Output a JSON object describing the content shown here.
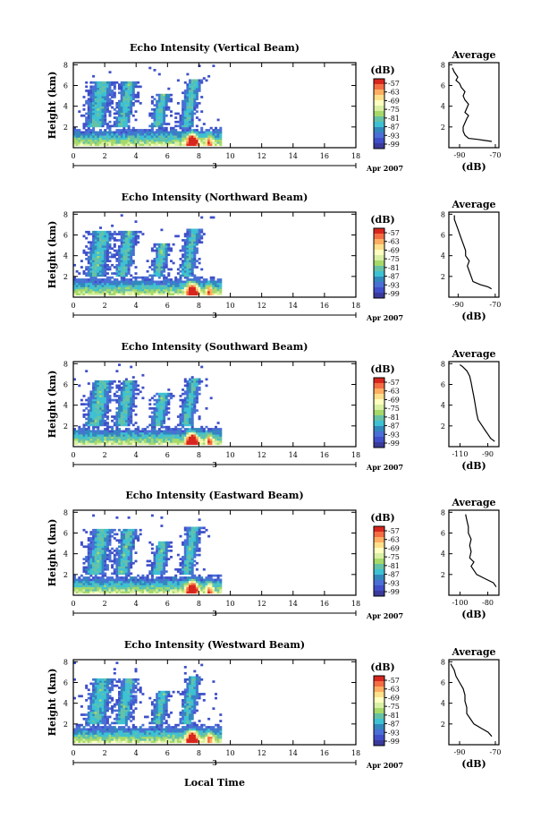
{
  "panels": [
    {
      "title": "Echo Intensity (Vertical Beam)",
      "avg_xticks": [
        "-90",
        "-70"
      ],
      "avg_xlim": [
        -96,
        -68
      ],
      "profile": [
        [
          -72,
          0.6
        ],
        [
          -76,
          0.7
        ],
        [
          -80,
          0.8
        ],
        [
          -85,
          0.9
        ],
        [
          -87,
          1.2
        ],
        [
          -88,
          1.6
        ],
        [
          -88,
          2
        ],
        [
          -87,
          2.4
        ],
        [
          -86,
          2.8
        ],
        [
          -85,
          3.1
        ],
        [
          -87,
          3.4
        ],
        [
          -86,
          3.8
        ],
        [
          -85,
          4.2
        ],
        [
          -87,
          4.6
        ],
        [
          -88,
          5
        ],
        [
          -87,
          5.4
        ],
        [
          -89,
          5.8
        ],
        [
          -90,
          6.2
        ],
        [
          -92,
          6.5
        ],
        [
          -91,
          6.8
        ],
        [
          -93,
          7.3
        ],
        [
          -94,
          7.7
        ]
      ]
    },
    {
      "title": "Echo Intensity (Northward Beam)",
      "avg_xticks": [
        "-90",
        "-70"
      ],
      "avg_xlim": [
        -95,
        -68
      ],
      "profile": [
        [
          -72,
          0.8
        ],
        [
          -74,
          1
        ],
        [
          -78,
          1.2
        ],
        [
          -82,
          1.5
        ],
        [
          -83,
          2
        ],
        [
          -84,
          2.5
        ],
        [
          -85,
          3
        ],
        [
          -84,
          3.5
        ],
        [
          -86,
          4
        ],
        [
          -86,
          4.5
        ],
        [
          -87,
          5
        ],
        [
          -88,
          5.5
        ],
        [
          -89,
          6
        ],
        [
          -90,
          6.5
        ],
        [
          -91,
          7
        ],
        [
          -92,
          7.5
        ],
        [
          -92,
          7.9
        ]
      ]
    },
    {
      "title": "Echo Intensity (Southward Beam)",
      "avg_xticks": [
        "-110",
        "-90"
      ],
      "avg_xlim": [
        -118,
        -82
      ],
      "profile": [
        [
          -85,
          0.5
        ],
        [
          -88,
          0.8
        ],
        [
          -90,
          1.2
        ],
        [
          -92,
          1.6
        ],
        [
          -94,
          2
        ],
        [
          -97,
          2.6
        ],
        [
          -98,
          3.2
        ],
        [
          -99,
          4
        ],
        [
          -100,
          4.8
        ],
        [
          -101,
          5.5
        ],
        [
          -102,
          6.2
        ],
        [
          -103,
          6.8
        ],
        [
          -105,
          7.3
        ],
        [
          -108,
          7.7
        ],
        [
          -110,
          7.9
        ]
      ]
    },
    {
      "title": "Echo Intensity (Eastward Beam)",
      "avg_xticks": [
        "-100",
        "-80"
      ],
      "avg_xlim": [
        -108,
        -72
      ],
      "profile": [
        [
          -74,
          0.8
        ],
        [
          -76,
          1.2
        ],
        [
          -82,
          1.6
        ],
        [
          -88,
          2
        ],
        [
          -90,
          2.4
        ],
        [
          -92,
          2.8
        ],
        [
          -90,
          3.2
        ],
        [
          -93,
          3.6
        ],
        [
          -92,
          4.2
        ],
        [
          -93,
          4.8
        ],
        [
          -92,
          5.4
        ],
        [
          -94,
          6
        ],
        [
          -94,
          6.6
        ],
        [
          -95,
          7.2
        ],
        [
          -96,
          7.8
        ]
      ]
    },
    {
      "title": "Echo Intensity (Westward Beam)",
      "avg_xticks": [
        "-90",
        "-70"
      ],
      "avg_xlim": [
        -96,
        -68
      ],
      "profile": [
        [
          -72,
          0.8
        ],
        [
          -74,
          1.2
        ],
        [
          -78,
          1.6
        ],
        [
          -82,
          2
        ],
        [
          -84,
          2.5
        ],
        [
          -86,
          3
        ],
        [
          -86,
          3.6
        ],
        [
          -87,
          4.2
        ],
        [
          -87,
          4.8
        ],
        [
          -88,
          5.4
        ],
        [
          -90,
          6
        ],
        [
          -92,
          6.6
        ],
        [
          -93,
          7.2
        ],
        [
          -95,
          7.8
        ]
      ]
    }
  ],
  "main_ylabel": "Height (km)",
  "main_yticks": [
    "2",
    "4",
    "6",
    "8"
  ],
  "main_xticks": [
    "0",
    "2",
    "4",
    "6",
    "8",
    "10",
    "12",
    "14",
    "16",
    "18"
  ],
  "date_day": "3",
  "date_label": "Apr 2007",
  "colorbar_unit": "(dB)",
  "colorbar_ticks": [
    "-57",
    "-63",
    "-69",
    "-75",
    "-81",
    "-87",
    "-93",
    "-99"
  ],
  "colorbar_colors": [
    "#d7261e",
    "#f46d43",
    "#fdae61",
    "#fee08b",
    "#ffffbf",
    "#d9f0a3",
    "#a6d96a",
    "#66c2a5",
    "#3ec1d3",
    "#3288bd",
    "#4a6fd6",
    "#3f4fc8",
    "#3a3a9a"
  ],
  "avg_title": "Average",
  "avg_xlabel": "(dB)",
  "avg_yticks": [
    "2",
    "4",
    "6",
    "8"
  ],
  "bottom_xlabel": "Local Time"
}
